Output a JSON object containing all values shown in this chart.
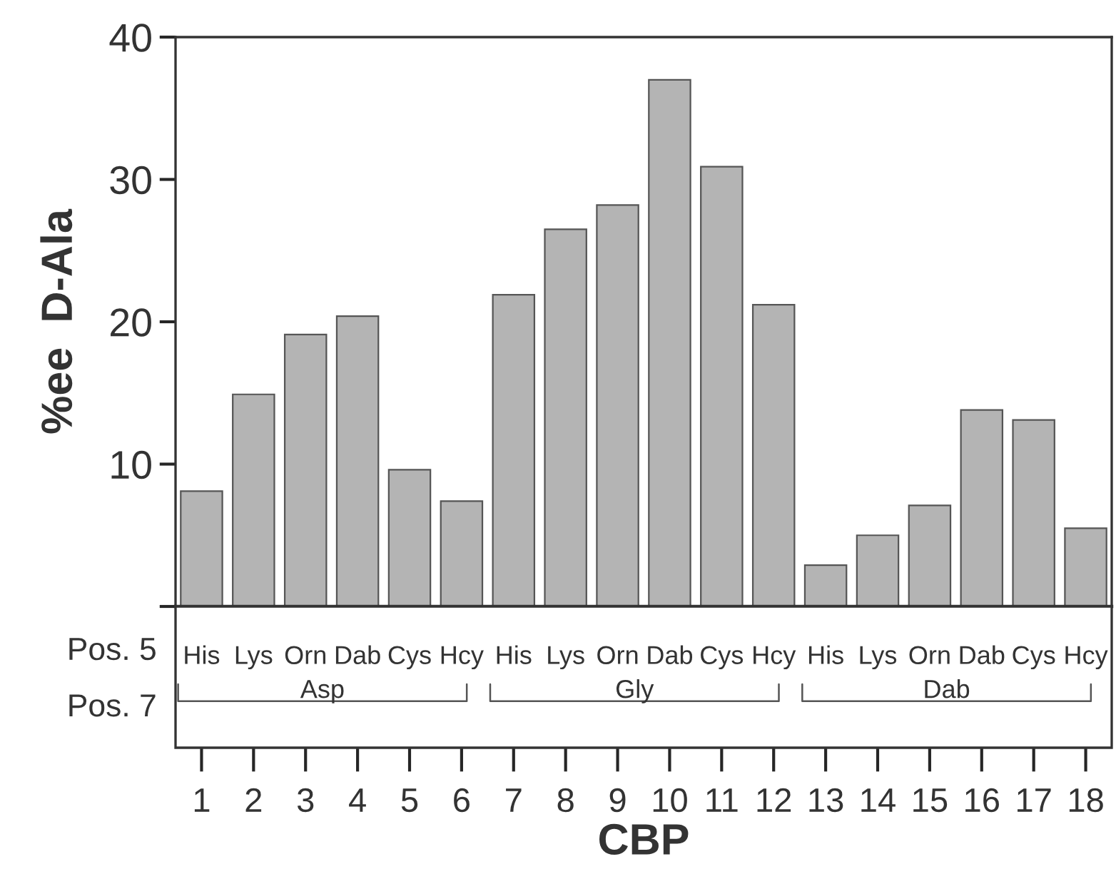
{
  "chart_data": {
    "type": "bar",
    "xlabel": "CBP",
    "ylabel": "%ee  D-Ala",
    "categories": [
      "1",
      "2",
      "3",
      "4",
      "5",
      "6",
      "7",
      "8",
      "9",
      "10",
      "11",
      "12",
      "13",
      "14",
      "15",
      "16",
      "17",
      "18"
    ],
    "series": [
      {
        "color": "#b4b4b4",
        "values": [
          8.1,
          14.9,
          19.1,
          20.4,
          9.6,
          7.4,
          21.9,
          26.5,
          28.2,
          37.0,
          30.9,
          21.2,
          2.9,
          5.0,
          7.1,
          13.8,
          13.1,
          5.5
        ]
      }
    ],
    "ylim": [
      0,
      40
    ],
    "yticks": [
      {
        "value": 0,
        "label": null
      },
      10,
      20,
      30,
      40
    ],
    "grid": false,
    "legend": false,
    "annotations": [
      "Pos. 5",
      "Pos. 7",
      "Asp",
      "Gly",
      "Dab",
      "His",
      "Lys",
      "Orn",
      "Dab",
      "Cys",
      "Hcy",
      "His",
      "Lys",
      "Orn",
      "Dab",
      "Cys",
      "Hcy",
      "His",
      "Lys",
      "Orn",
      "Dab",
      "Cys",
      "Hcy"
    ]
  }
}
